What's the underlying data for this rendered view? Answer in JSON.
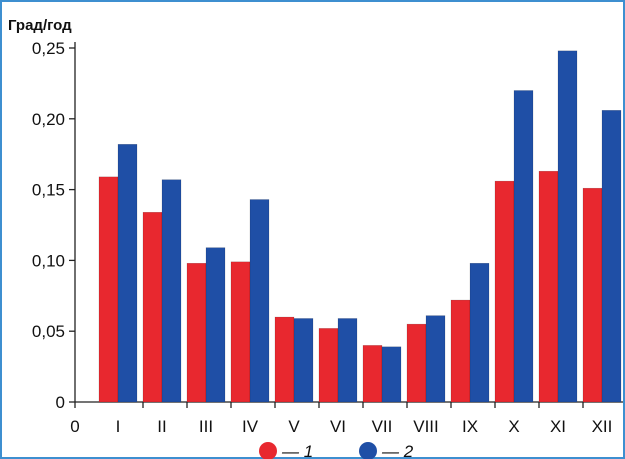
{
  "chart_data": {
    "type": "bar",
    "ylabel": "Град/год",
    "ylim": [
      0,
      0.25
    ],
    "yticks": [
      "0",
      "0,05",
      "0,10",
      "0,15",
      "0,20",
      "0,25"
    ],
    "xaxis_origin_label": "0",
    "categories": [
      "I",
      "II",
      "III",
      "IV",
      "V",
      "VI",
      "VII",
      "VIII",
      "IX",
      "X",
      "XI",
      "XII"
    ],
    "series": [
      {
        "name": "— 1",
        "color": "#e8282f",
        "values": [
          0.159,
          0.134,
          0.098,
          0.099,
          0.06,
          0.052,
          0.04,
          0.055,
          0.072,
          0.156,
          0.163,
          0.151
        ]
      },
      {
        "name": "— 2",
        "color": "#1f4fa6",
        "values": [
          0.182,
          0.157,
          0.109,
          0.143,
          0.059,
          0.059,
          0.039,
          0.061,
          0.098,
          0.22,
          0.248,
          0.206
        ]
      }
    ],
    "grid": false,
    "legend_position": "bottom-center"
  }
}
